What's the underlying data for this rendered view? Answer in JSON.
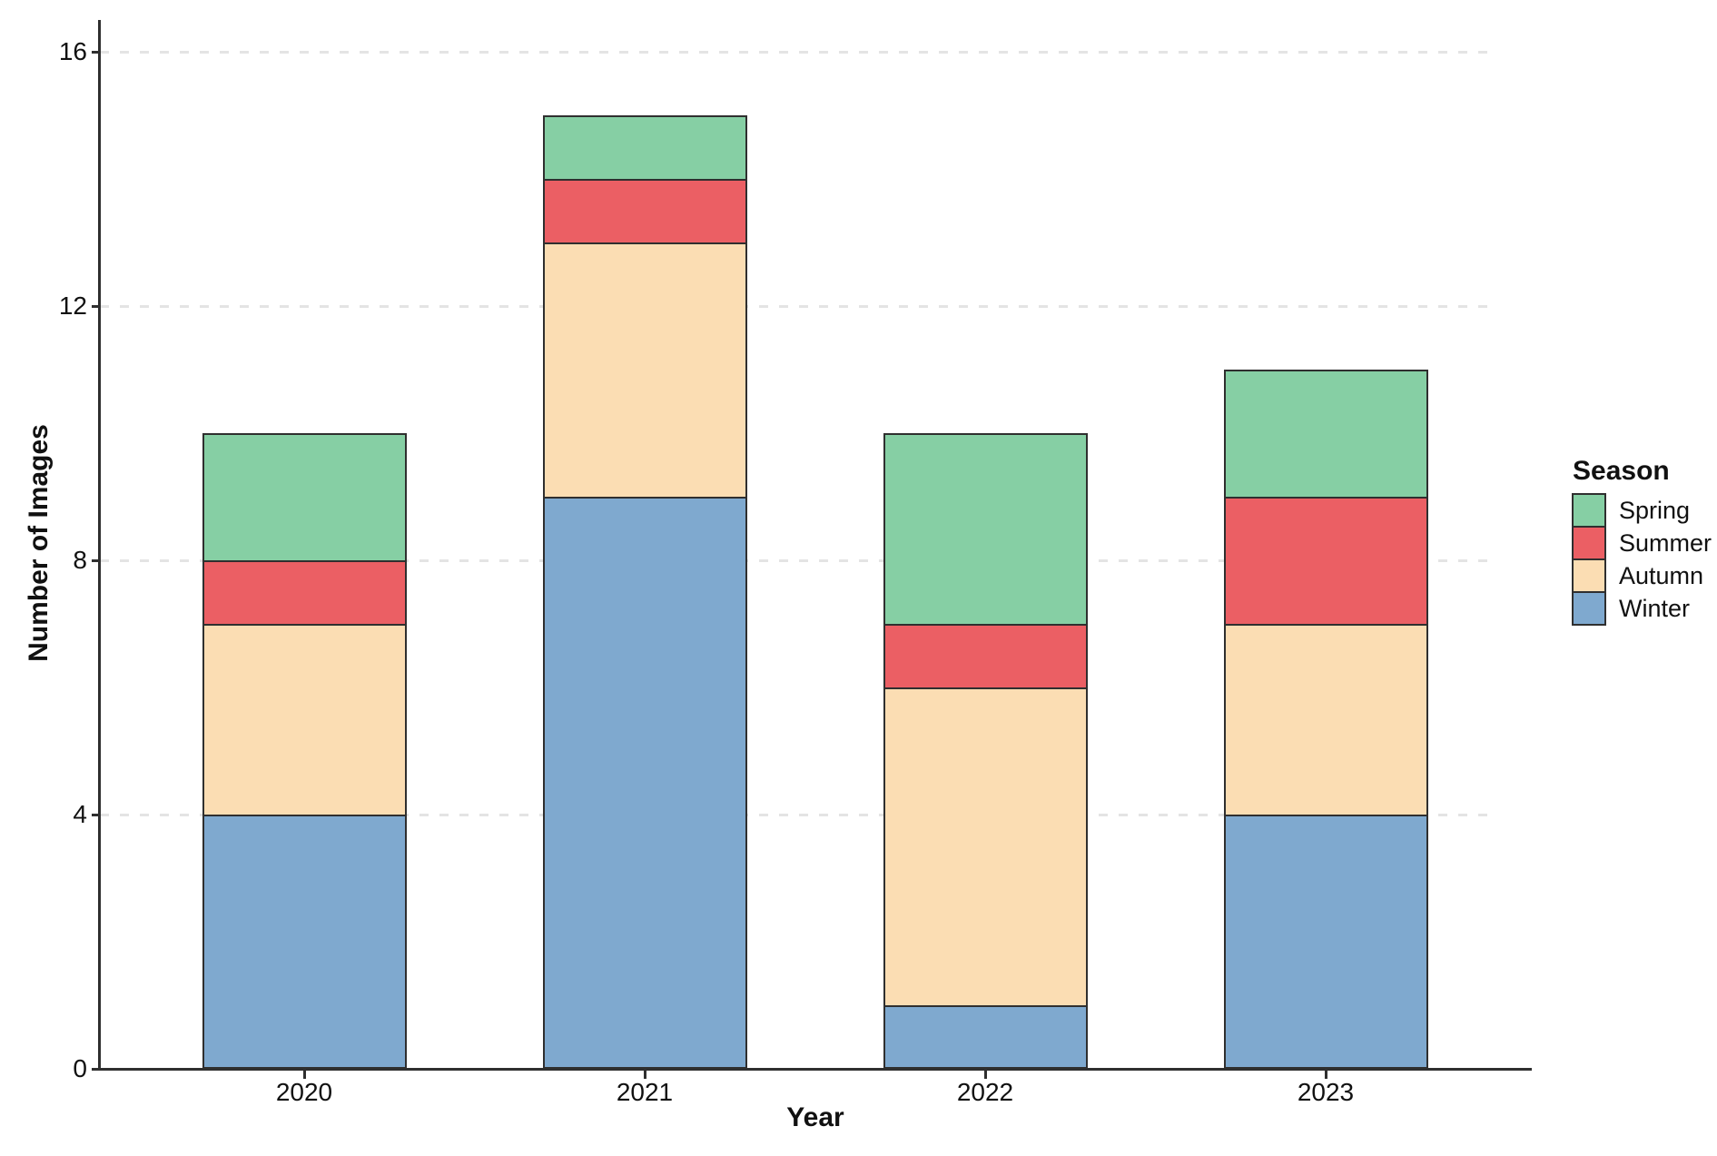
{
  "chart_data": {
    "type": "bar",
    "stacked": true,
    "title": "",
    "xlabel": "Year",
    "ylabel": "Number of Images",
    "categories": [
      "2020",
      "2021",
      "2022",
      "2023"
    ],
    "series": [
      {
        "name": "Winter",
        "color": "#7fa9cf",
        "values": [
          4,
          9,
          1,
          4
        ]
      },
      {
        "name": "Autumn",
        "color": "#fbddb3",
        "values": [
          3,
          4,
          5,
          3
        ]
      },
      {
        "name": "Summer",
        "color": "#eb5f64",
        "values": [
          1,
          1,
          1,
          2
        ]
      },
      {
        "name": "Spring",
        "color": "#86cfa4",
        "values": [
          2,
          1,
          3,
          2
        ]
      }
    ],
    "totals": [
      10,
      15,
      10,
      11
    ],
    "yticks": [
      0,
      4,
      8,
      12,
      16
    ],
    "ylim": [
      0,
      16.5
    ],
    "grid": "horizontal-dashed",
    "legend": {
      "title": "Season",
      "position": "right",
      "entries": [
        "Spring",
        "Summer",
        "Autumn",
        "Winter"
      ]
    },
    "style": {
      "axis_color": "#2f2f2f",
      "grid_color": "#e4e4e4",
      "segment_border_color": "#2f2f2f",
      "background": "#ffffff"
    }
  }
}
